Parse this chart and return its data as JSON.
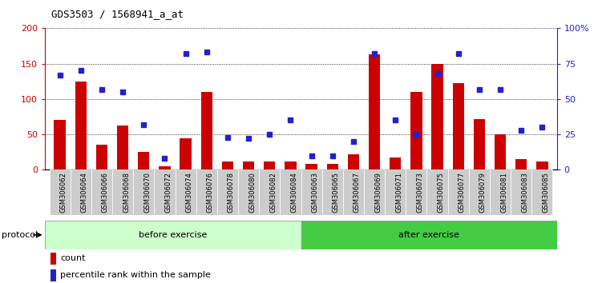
{
  "title": "GDS3503 / 1568941_a_at",
  "categories": [
    "GSM306062",
    "GSM306064",
    "GSM306066",
    "GSM306068",
    "GSM306070",
    "GSM306072",
    "GSM306074",
    "GSM306076",
    "GSM306078",
    "GSM306080",
    "GSM306082",
    "GSM306084",
    "GSM306063",
    "GSM306065",
    "GSM306067",
    "GSM306069",
    "GSM306071",
    "GSM306073",
    "GSM306075",
    "GSM306077",
    "GSM306079",
    "GSM306081",
    "GSM306083",
    "GSM306085"
  ],
  "count": [
    70,
    125,
    35,
    63,
    25,
    5,
    45,
    110,
    12,
    12,
    12,
    12,
    8,
    8,
    22,
    163,
    17,
    110,
    150,
    122,
    72,
    50,
    15,
    12
  ],
  "percentile": [
    67,
    70,
    57,
    55,
    32,
    8,
    82,
    83,
    23,
    22,
    25,
    35,
    10,
    10,
    20,
    82,
    35,
    25,
    68,
    82,
    57,
    57,
    28,
    30
  ],
  "before_count": 12,
  "after_count": 12,
  "before_label": "before exercise",
  "after_label": "after exercise",
  "protocol_label": "protocol",
  "legend_count": "count",
  "legend_percentile": "percentile rank within the sample",
  "ylim_left": [
    0,
    200
  ],
  "ylim_right": [
    0,
    100
  ],
  "yticks_left": [
    0,
    50,
    100,
    150,
    200
  ],
  "yticks_right": [
    0,
    25,
    50,
    75,
    100
  ],
  "yticklabels_right": [
    "0",
    "25",
    "50",
    "75",
    "100%"
  ],
  "bar_color_red": "#cc0000",
  "bar_color_blue": "#2222cc",
  "before_bg": "#ccffcc",
  "after_bg": "#44cc44",
  "tick_bg": "#cccccc",
  "plot_bg": "white",
  "spine_bottom_color": "#000000"
}
